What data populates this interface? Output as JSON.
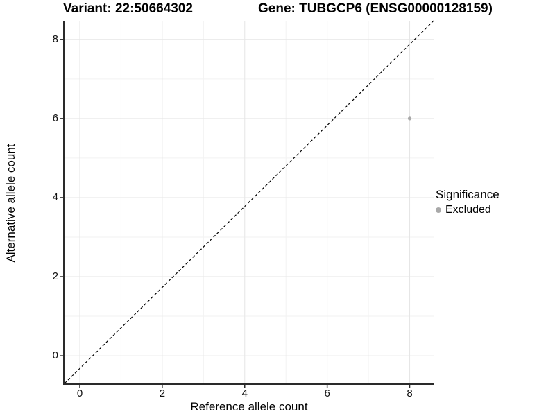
{
  "header": {
    "variant_title": "Variant: 22:50664302",
    "gene_title": "Gene: TUBGCP6 (ENSG00000128159)"
  },
  "chart_data": {
    "type": "scatter",
    "xlabel": "Reference allele count",
    "ylabel": "Alternative allele count",
    "x_ticks": [
      0,
      2,
      4,
      6,
      8
    ],
    "y_ticks": [
      0,
      2,
      4,
      6,
      8
    ],
    "x_minor_ticks": [
      1,
      3,
      5,
      7
    ],
    "y_minor_ticks": [
      1,
      3,
      5,
      7
    ],
    "xlim": [
      -0.37,
      8.58
    ],
    "ylim": [
      -0.7,
      8.47
    ],
    "grid": true,
    "identity_line": {
      "style": "dashed",
      "color": "#000000"
    },
    "series": [
      {
        "name": "Excluded",
        "color": "#a9a9a9",
        "points": [
          {
            "x": 8,
            "y": 6
          }
        ]
      }
    ],
    "legend": {
      "title": "Significance",
      "position": "right",
      "entries": [
        {
          "label": "Excluded",
          "color": "#a9a9a9"
        }
      ]
    },
    "colors": {
      "grid_major": "#e6e6e6",
      "grid_minor": "#f2f2f2",
      "axis_line": "#2a2a2a",
      "tick_mark": "#2a2a2a",
      "point": "#a9a9a9"
    }
  }
}
